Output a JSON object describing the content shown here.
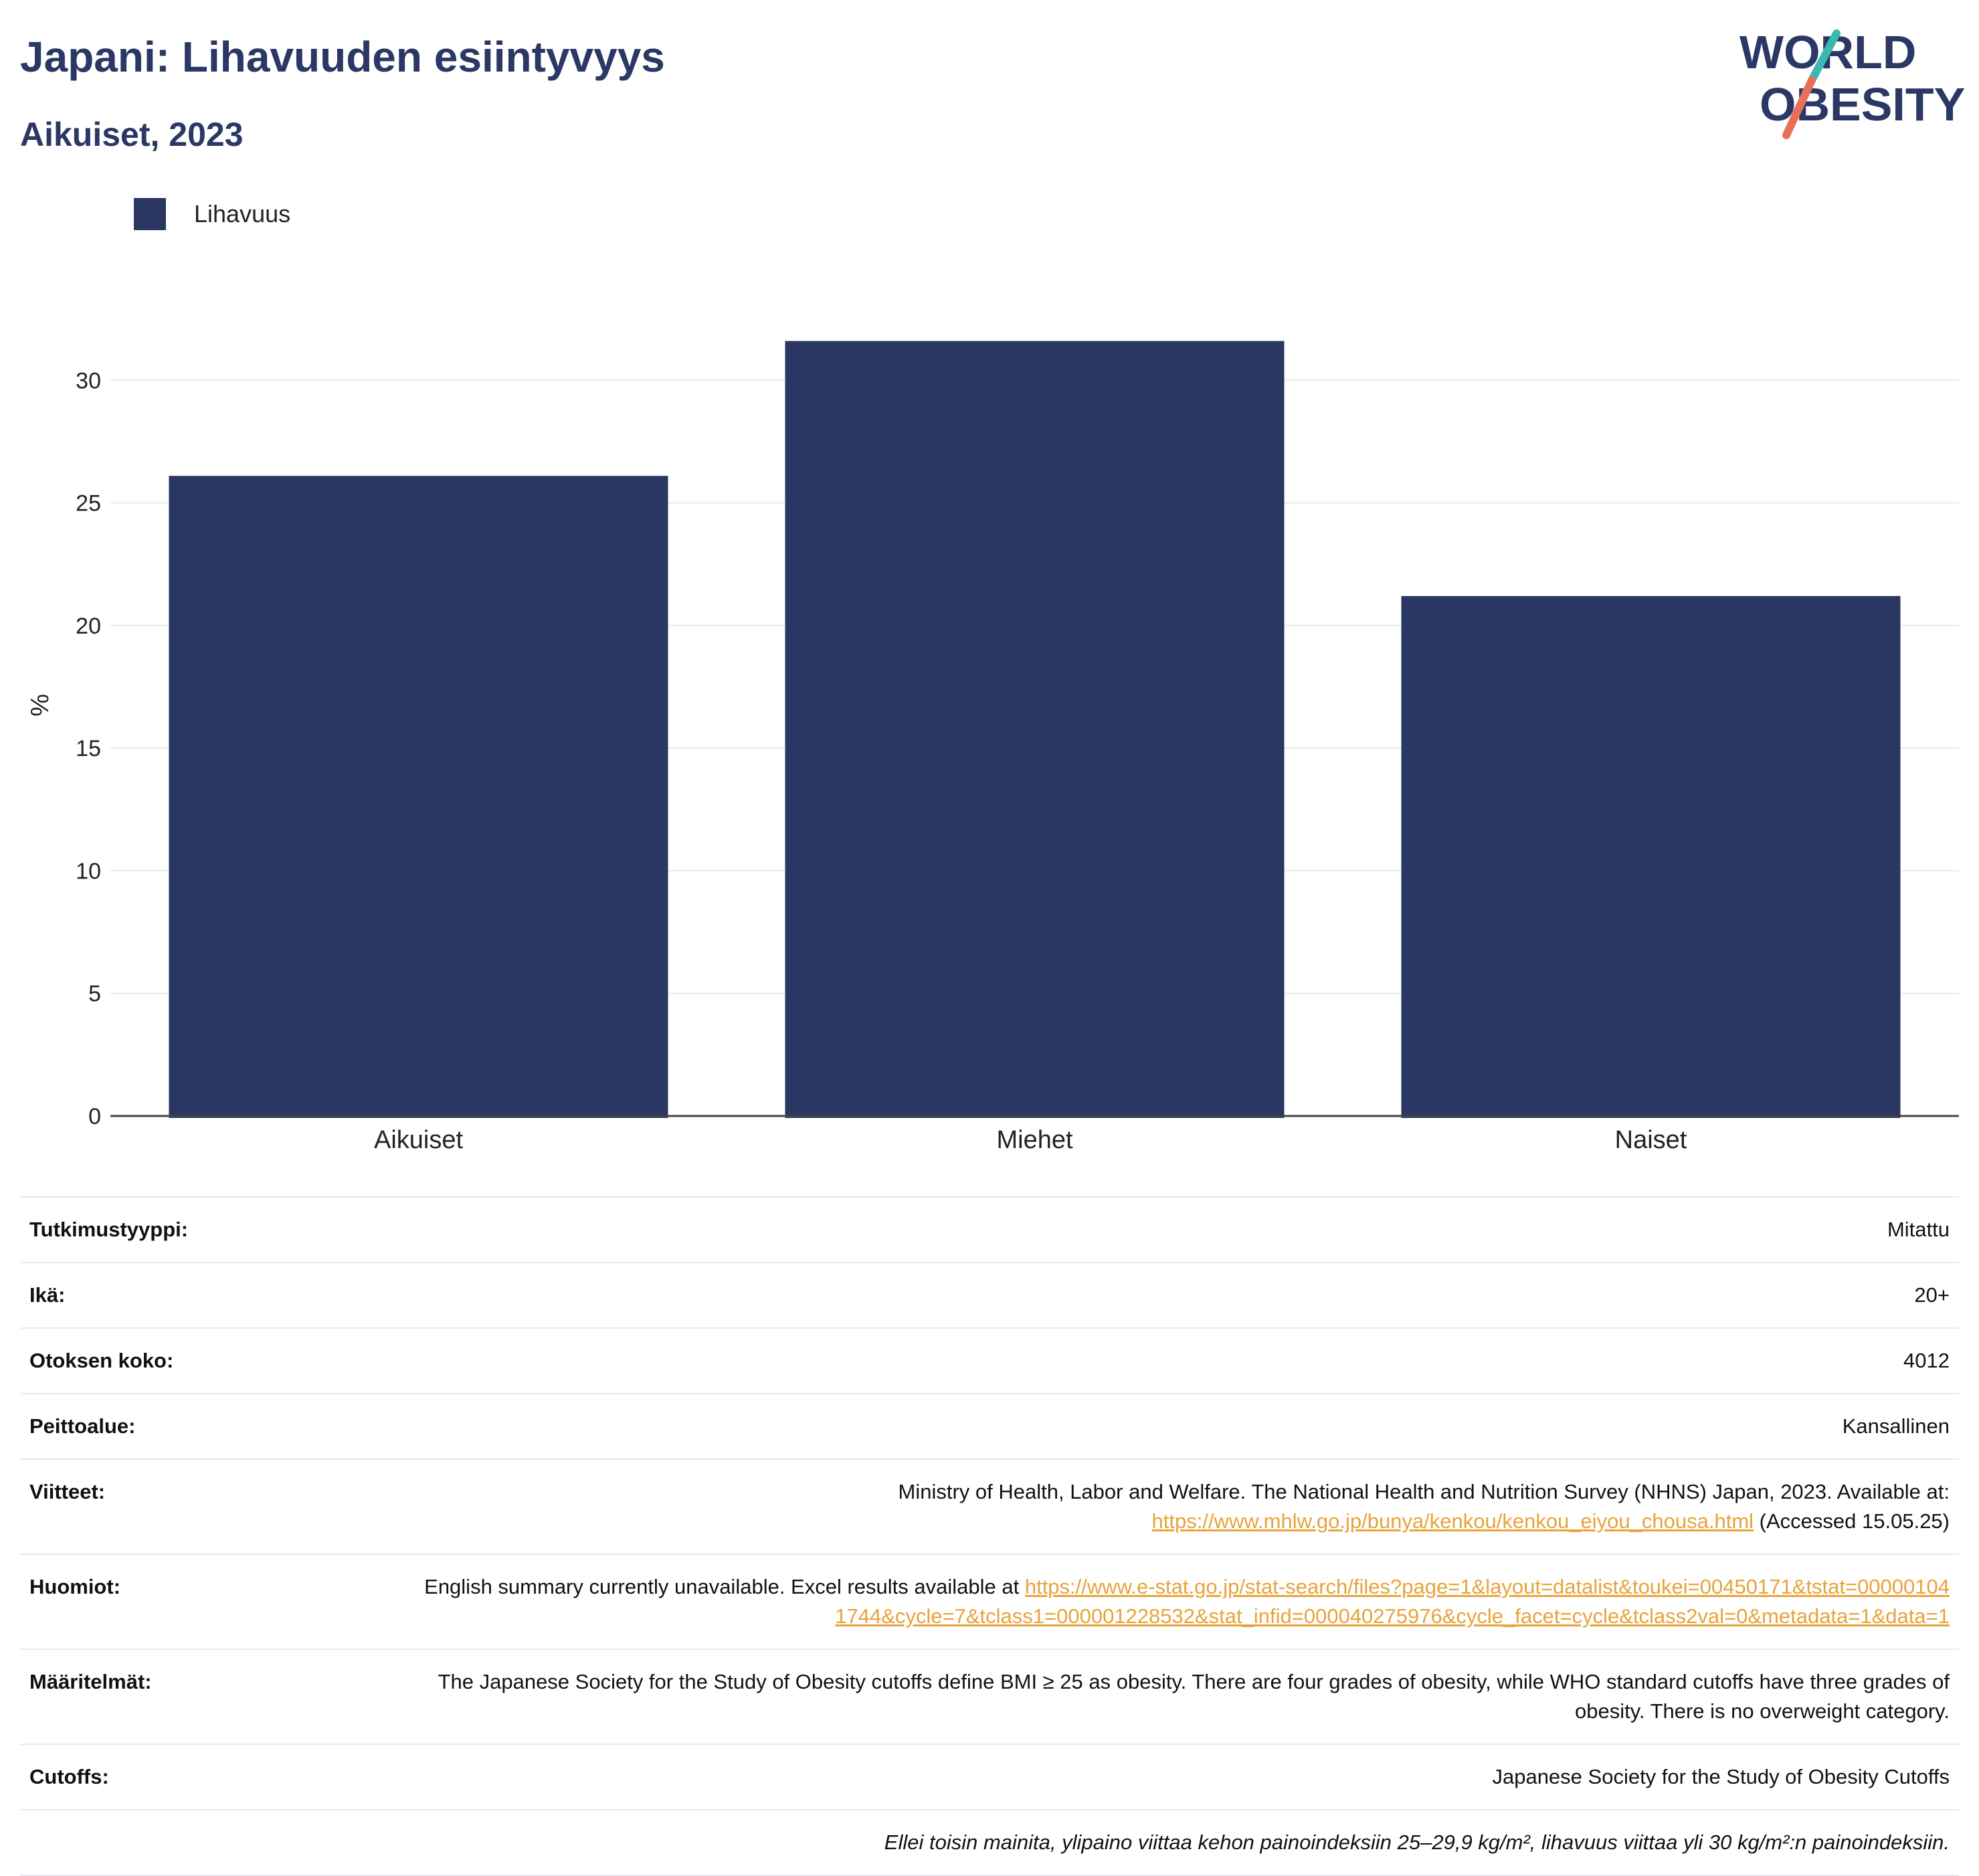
{
  "header": {
    "title": "Japani: Lihavuuden esiintyvyys",
    "subtitle": "Aikuiset, 2023"
  },
  "logo": {
    "line1": "WORLD",
    "line2": "OBESITY",
    "colors": {
      "text": "#2b3764",
      "teal": "#3bb8b0",
      "coral": "#e8705a"
    }
  },
  "legend": {
    "label": "Lihavuus",
    "color": "#2b3763"
  },
  "chart_data": {
    "type": "bar",
    "categories": [
      "Aikuiset",
      "Miehet",
      "Naiset"
    ],
    "series": [
      {
        "name": "Lihavuus",
        "values": [
          26.1,
          31.6,
          21.2
        ]
      }
    ],
    "ylabel": "%",
    "xlabel": "",
    "ylim": [
      0,
      33.5
    ],
    "yticks": [
      0,
      5,
      10,
      15,
      20,
      25,
      30
    ],
    "grid": true,
    "legend_position": "top-left",
    "bar_color": "#2b3763"
  },
  "meta": {
    "study_type": {
      "label": "Tutkimustyyppi:",
      "value": "Mitattu"
    },
    "age": {
      "label": "Ikä:",
      "value": "20+"
    },
    "sample_size": {
      "label": "Otoksen koko:",
      "value": "4012"
    },
    "coverage": {
      "label": "Peittoalue:",
      "value": "Kansallinen"
    },
    "references": {
      "label": "Viitteet:",
      "text_before": "Ministry of Health, Labor and Welfare. The National Health and Nutrition Survey (NHNS) Japan, 2023. Available at:",
      "link": "https://www.mhlw.go.jp/bunya/kenkou/kenkou_eiyou_chousa.html",
      "text_after": "(Accessed 15.05.25)"
    },
    "notes": {
      "label": "Huomiot:",
      "text_before": "English summary currently unavailable. Excel results available at",
      "link": "https://www.e-stat.go.jp/stat-search/files?page=1&layout=datalist&toukei=00450171&tstat=000001041744&cycle=7&tclass1=000001228532&stat_infid=000040275976&cycle_facet=cycle&tclass2val=0&metadata=1&data=1"
    },
    "definitions": {
      "label": "Määritelmät:",
      "value": "The Japanese Society for the Study of Obesity cutoffs define BMI ≥ 25 as obesity. There are four grades of obesity, while WHO standard cutoffs have three grades of obesity. There is no overweight category."
    },
    "cutoffs": {
      "label": "Cutoffs:",
      "value": "Japanese Society for the Study of Obesity Cutoffs"
    },
    "footnote": "Ellei toisin mainita, ylipaino viittaa kehon painoindeksiin 25–29,9 kg/m², lihavuus viittaa yli 30 kg/m²:n painoindeksiin."
  }
}
